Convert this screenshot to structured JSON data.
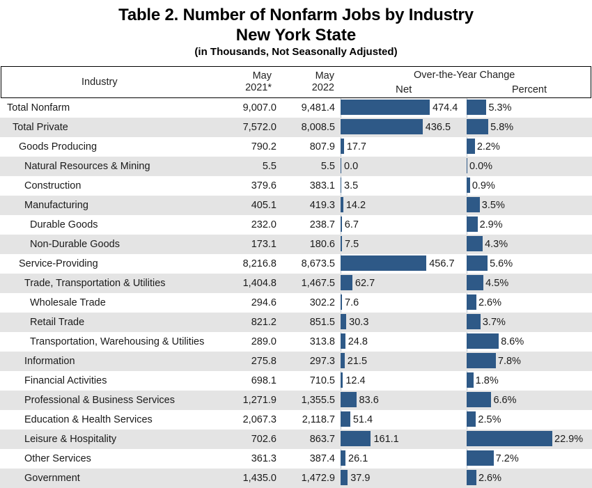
{
  "title": {
    "line1": "Table 2. Number of Nonfarm Jobs by Industry",
    "line2": "New York State",
    "line3": "(in Thousands, Not Seasonally Adjusted)"
  },
  "header": {
    "industry": "Industry",
    "may2021_l1": "May",
    "may2021_l2": "2021*",
    "may2022_l1": "May",
    "may2022_l2": "2022",
    "oty": "Over-the-Year Change",
    "net": "Net",
    "percent": "Percent"
  },
  "colors": {
    "bar": "#2e5987",
    "shade": "#e4e4e4"
  },
  "chart_data": {
    "type": "table",
    "title": "Table 2. Number of Nonfarm Jobs by Industry — New York State (in Thousands, Not Seasonally Adjusted)",
    "columns": [
      "Industry",
      "May 2021*",
      "May 2022",
      "Net",
      "Percent"
    ],
    "rows": [
      {
        "industry": "Total Nonfarm",
        "level": 0,
        "may2021": "9,007.0",
        "may2022": "9,481.4",
        "net": 474.4,
        "net_label": "474.4",
        "pct": 5.3,
        "pct_label": "5.3%"
      },
      {
        "industry": "Total Private",
        "level": 1,
        "may2021": "7,572.0",
        "may2022": "8,008.5",
        "net": 436.5,
        "net_label": "436.5",
        "pct": 5.8,
        "pct_label": "5.8%"
      },
      {
        "industry": "Goods Producing",
        "level": 2,
        "may2021": "790.2",
        "may2022": "807.9",
        "net": 17.7,
        "net_label": "17.7",
        "pct": 2.2,
        "pct_label": "2.2%"
      },
      {
        "industry": "Natural Resources & Mining",
        "level": 3,
        "may2021": "5.5",
        "may2022": "5.5",
        "net": 0.0,
        "net_label": "0.0",
        "pct": 0.0,
        "pct_label": "0.0%"
      },
      {
        "industry": "Construction",
        "level": 3,
        "may2021": "379.6",
        "may2022": "383.1",
        "net": 3.5,
        "net_label": "3.5",
        "pct": 0.9,
        "pct_label": "0.9%"
      },
      {
        "industry": "Manufacturing",
        "level": 3,
        "may2021": "405.1",
        "may2022": "419.3",
        "net": 14.2,
        "net_label": "14.2",
        "pct": 3.5,
        "pct_label": "3.5%"
      },
      {
        "industry": "Durable Goods",
        "level": 4,
        "may2021": "232.0",
        "may2022": "238.7",
        "net": 6.7,
        "net_label": "6.7",
        "pct": 2.9,
        "pct_label": "2.9%"
      },
      {
        "industry": "Non-Durable Goods",
        "level": 4,
        "may2021": "173.1",
        "may2022": "180.6",
        "net": 7.5,
        "net_label": "7.5",
        "pct": 4.3,
        "pct_label": "4.3%"
      },
      {
        "industry": "Service-Providing",
        "level": 2,
        "may2021": "8,216.8",
        "may2022": "8,673.5",
        "net": 456.7,
        "net_label": "456.7",
        "pct": 5.6,
        "pct_label": "5.6%"
      },
      {
        "industry": "Trade, Transportation & Utilities",
        "level": 3,
        "may2021": "1,404.8",
        "may2022": "1,467.5",
        "net": 62.7,
        "net_label": "62.7",
        "pct": 4.5,
        "pct_label": "4.5%"
      },
      {
        "industry": "Wholesale Trade",
        "level": 4,
        "may2021": "294.6",
        "may2022": "302.2",
        "net": 7.6,
        "net_label": "7.6",
        "pct": 2.6,
        "pct_label": "2.6%"
      },
      {
        "industry": "Retail Trade",
        "level": 4,
        "may2021": "821.2",
        "may2022": "851.5",
        "net": 30.3,
        "net_label": "30.3",
        "pct": 3.7,
        "pct_label": "3.7%"
      },
      {
        "industry": "Transportation, Warehousing & Utilities",
        "level": 4,
        "may2021": "289.0",
        "may2022": "313.8",
        "net": 24.8,
        "net_label": "24.8",
        "pct": 8.6,
        "pct_label": "8.6%"
      },
      {
        "industry": "Information",
        "level": 3,
        "may2021": "275.8",
        "may2022": "297.3",
        "net": 21.5,
        "net_label": "21.5",
        "pct": 7.8,
        "pct_label": "7.8%"
      },
      {
        "industry": "Financial Activities",
        "level": 3,
        "may2021": "698.1",
        "may2022": "710.5",
        "net": 12.4,
        "net_label": "12.4",
        "pct": 1.8,
        "pct_label": "1.8%"
      },
      {
        "industry": "Professional & Business Services",
        "level": 3,
        "may2021": "1,271.9",
        "may2022": "1,355.5",
        "net": 83.6,
        "net_label": "83.6",
        "pct": 6.6,
        "pct_label": "6.6%"
      },
      {
        "industry": "Education & Health Services",
        "level": 3,
        "may2021": "2,067.3",
        "may2022": "2,118.7",
        "net": 51.4,
        "net_label": "51.4",
        "pct": 2.5,
        "pct_label": "2.5%"
      },
      {
        "industry": "Leisure & Hospitality",
        "level": 3,
        "may2021": "702.6",
        "may2022": "863.7",
        "net": 161.1,
        "net_label": "161.1",
        "pct": 22.9,
        "pct_label": "22.9%"
      },
      {
        "industry": "Other Services",
        "level": 3,
        "may2021": "361.3",
        "may2022": "387.4",
        "net": 26.1,
        "net_label": "26.1",
        "pct": 7.2,
        "pct_label": "7.2%"
      },
      {
        "industry": "Government",
        "level": 3,
        "may2021": "1,435.0",
        "may2022": "1,472.9",
        "net": 37.9,
        "net_label": "37.9",
        "pct": 2.6,
        "pct_label": "2.6%"
      }
    ]
  }
}
